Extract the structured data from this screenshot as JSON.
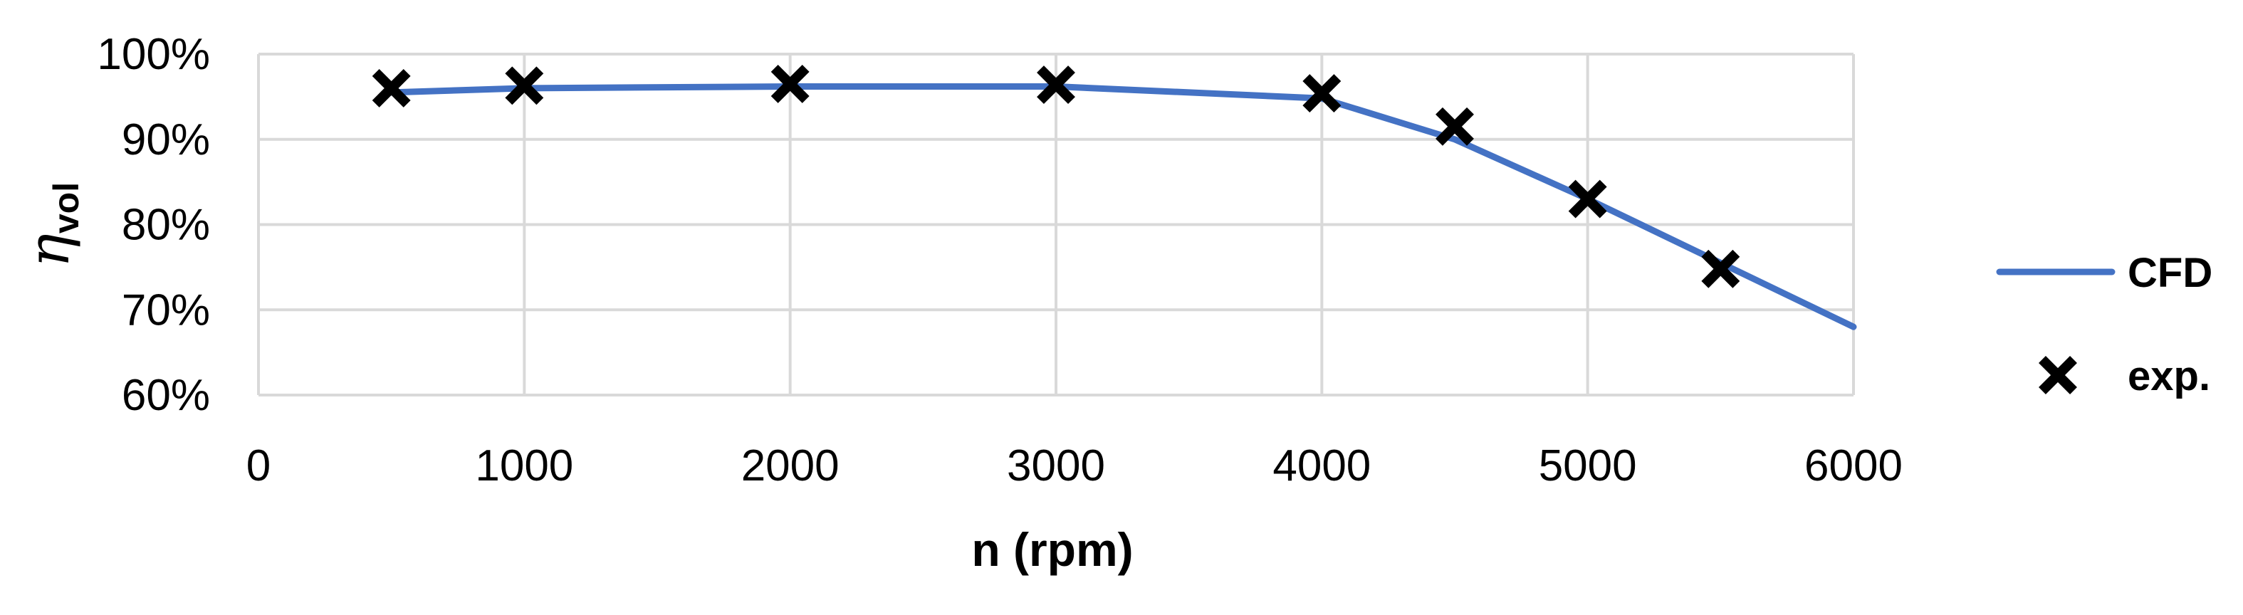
{
  "chart_data": {
    "type": "line",
    "xlabel": "n (rpm)",
    "ylabel": {
      "symbol": "η",
      "subscript": "vol"
    },
    "xlim": [
      0,
      6000
    ],
    "ylim": [
      0.6,
      1.0
    ],
    "x_ticks": [
      "0",
      "1000",
      "2000",
      "3000",
      "4000",
      "5000",
      "6000"
    ],
    "y_ticks": [
      "60%",
      "70%",
      "80%",
      "90%",
      "100%"
    ],
    "grid": true,
    "legend_position": "right",
    "series": [
      {
        "name": "CFD",
        "kind": "line",
        "color": "#4472C4",
        "x": [
          500,
          1000,
          2000,
          3000,
          4000,
          4500,
          5000,
          5500,
          6000
        ],
        "y": [
          0.955,
          0.96,
          0.962,
          0.962,
          0.948,
          0.9,
          0.83,
          0.755,
          0.68
        ]
      },
      {
        "name": "exp.",
        "kind": "scatter",
        "marker": "x",
        "color": "#000000",
        "x": [
          500,
          1000,
          2000,
          3000,
          4000,
          4500,
          5000,
          5500
        ],
        "y": [
          0.96,
          0.963,
          0.965,
          0.964,
          0.954,
          0.915,
          0.83,
          0.748
        ]
      }
    ]
  }
}
